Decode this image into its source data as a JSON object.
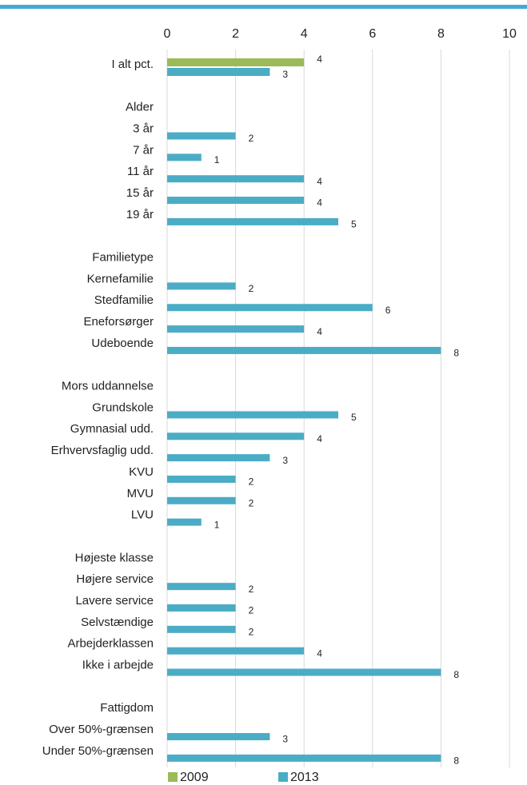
{
  "chart_data": {
    "type": "hbar",
    "categories": [
      "I alt pct.",
      null,
      "Alder",
      "3 år",
      "7 år",
      "11 år",
      "15 år",
      "19 år",
      null,
      "Familietype",
      "Kernefamilie",
      "Stedfamilie",
      "Eneforsørger",
      "Udeboende",
      null,
      "Mors uddannelse",
      "Grundskole",
      "Gymnasial udd.",
      "Erhvervsfaglig udd.",
      "KVU",
      "MVU",
      "LVU",
      null,
      "Højeste klasse",
      "Højere service",
      "Lavere service",
      "Selvstændige",
      "Arbejderklassen",
      "Ikke i arbejde",
      null,
      "Fattigdom",
      "Over 50%-grænsen",
      "Under 50%-grænsen"
    ],
    "series": [
      {
        "name": "2009",
        "color": "#9bbb59",
        "values": [
          4,
          null,
          null,
          null,
          null,
          null,
          null,
          null,
          null,
          null,
          null,
          null,
          null,
          null,
          null,
          null,
          null,
          null,
          null,
          null,
          null,
          null,
          null,
          null,
          null,
          null,
          null,
          null,
          null,
          null,
          null,
          null,
          null
        ]
      },
      {
        "name": "2013",
        "color": "#4bacc6",
        "values": [
          3,
          null,
          null,
          2,
          1,
          4,
          4,
          5,
          null,
          null,
          2,
          6,
          4,
          8,
          null,
          null,
          5,
          4,
          3,
          2,
          2,
          1,
          null,
          null,
          2,
          2,
          2,
          4,
          8,
          null,
          null,
          3,
          8
        ]
      }
    ],
    "xlim": [
      0,
      10
    ],
    "xticks": [
      0,
      2,
      4,
      6,
      8,
      10
    ],
    "grid": true,
    "legend": "bottom"
  }
}
